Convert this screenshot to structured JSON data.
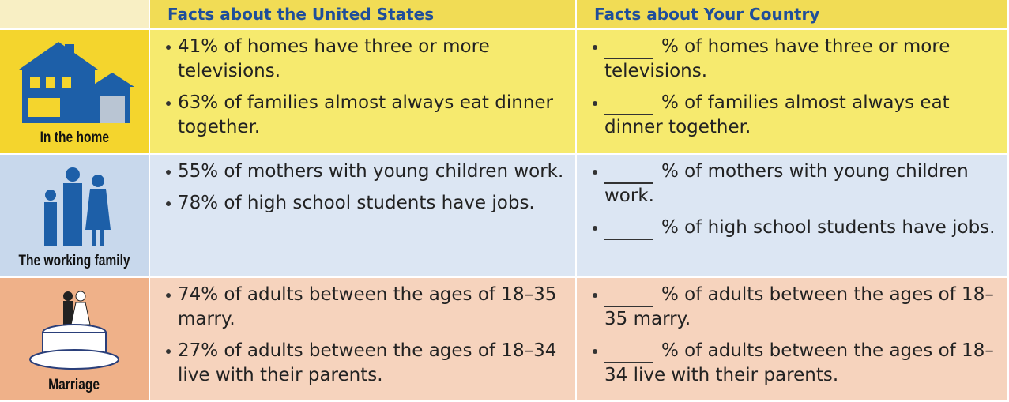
{
  "table": {
    "headers": [
      "Facts about the United States",
      "Facts about Your Country"
    ],
    "rows": [
      {
        "label": "In the home",
        "us": [
          "41% of homes have three or more televisions.",
          "63% of families almost always eat dinner together."
        ],
        "yours": [
          "% of homes have three or more televisions.",
          "% of families almost always eat dinner together."
        ]
      },
      {
        "label": "The working family",
        "us": [
          "55% of mothers with young children work.",
          "78% of high school students have jobs."
        ],
        "yours": [
          "% of mothers with young children work.",
          "% of high school students have jobs."
        ]
      },
      {
        "label": "Marriage",
        "us": [
          "74% of adults between the ages of 18–35 marry.",
          "27% of adults between the ages of 18–34 live with their parents."
        ],
        "yours": [
          "% of adults between the ages of 18–35 marry.",
          "% of adults between the ages of 18–34 live with their parents."
        ]
      }
    ]
  }
}
